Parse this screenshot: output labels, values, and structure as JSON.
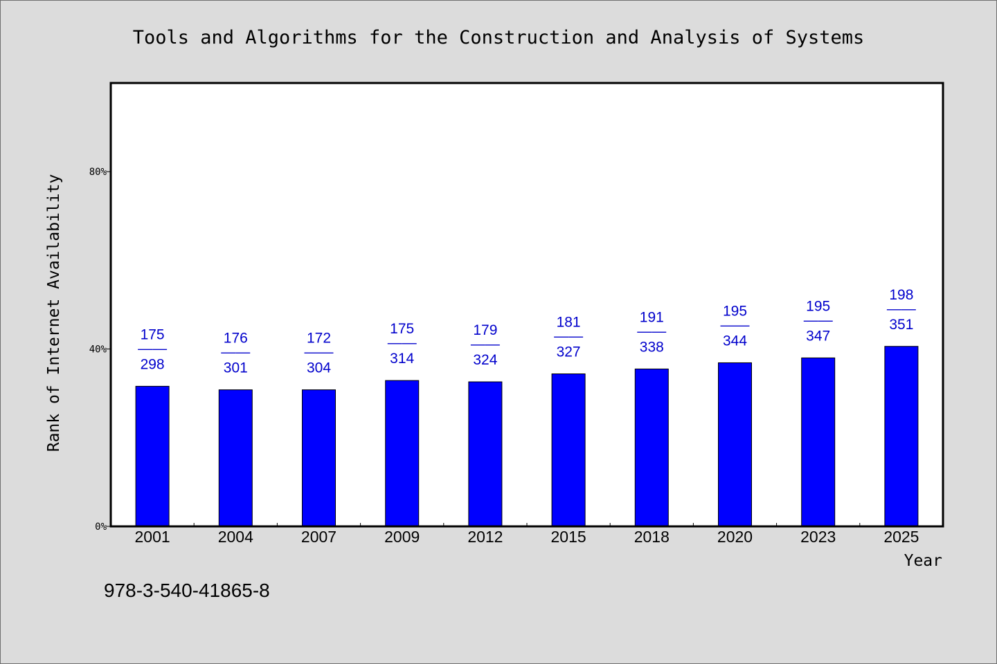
{
  "chart_data": {
    "type": "bar",
    "title": "Tools and Algorithms for the Construction and Analysis of Systems",
    "xlabel": "Year",
    "ylabel": "Rank of Internet Availability",
    "categories": [
      "2001",
      "2004",
      "2007",
      "2009",
      "2012",
      "2015",
      "2018",
      "2020",
      "2023",
      "2025"
    ],
    "series": [
      {
        "values": [
          31.6,
          30.8,
          30.8,
          32.9,
          32.6,
          34.4,
          35.5,
          36.9,
          38.0,
          40.6
        ],
        "labels_top": [
          "175",
          "176",
          "172",
          "175",
          "179",
          "181",
          "191",
          "195",
          "195",
          "198"
        ],
        "labels_bottom": [
          "298",
          "301",
          "304",
          "314",
          "324",
          "327",
          "338",
          "344",
          "347",
          "351"
        ],
        "separator": "——"
      }
    ],
    "ylim": [
      0,
      100
    ],
    "yticks": [
      0,
      40,
      80
    ],
    "ytick_labels": [
      "0%",
      "40%",
      "80%"
    ],
    "grid": false,
    "bar_color": "#0000ff",
    "label_color": "#0000cc"
  },
  "footer": {
    "text": "978-3-540-41865-8"
  }
}
